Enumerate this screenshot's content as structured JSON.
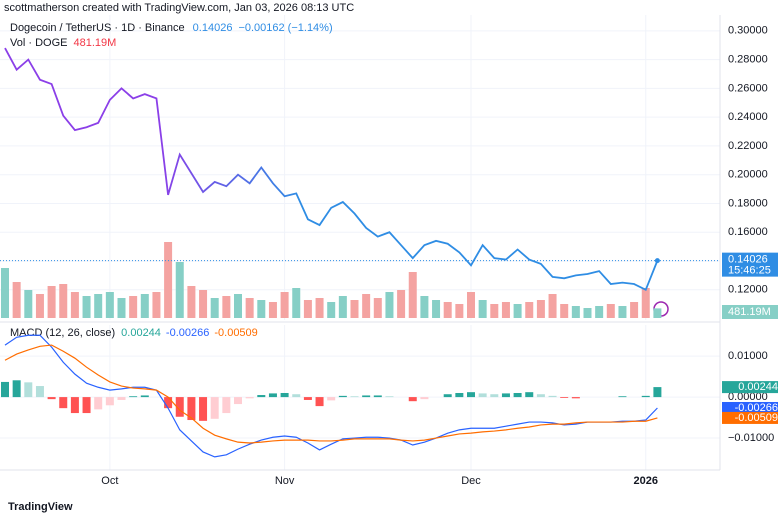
{
  "header": {
    "attribution": "scottmatherson created with TradingView.com, Jan 03, 2026 08:13 UTC"
  },
  "footer": {
    "logo": "TradingView"
  },
  "chart_data": [
    {
      "type": "line",
      "title": "Dogecoin / TetherUS · 1D · Binance",
      "change": "−0.00162 (−1.14%)",
      "countdown": "15:46:25",
      "series": [
        {
          "colors": [
            "#8b3fe8",
            "#2f8de4"
          ],
          "values": [
            0.288,
            0.273,
            0.28,
            0.266,
            0.263,
            0.241,
            0.231,
            0.233,
            0.236,
            0.252,
            0.26,
            0.253,
            0.256,
            0.253,
            0.186,
            0.214,
            0.201,
            0.188,
            0.195,
            0.192,
            0.2,
            0.194,
            0.205,
            0.194,
            0.185,
            0.187,
            0.169,
            0.165,
            0.177,
            0.181,
            0.173,
            0.163,
            0.157,
            0.16,
            0.151,
            0.142,
            0.151,
            0.154,
            0.152,
            0.146,
            0.137,
            0.151,
            0.142,
            0.141,
            0.148,
            0.141,
            0.138,
            0.129,
            0.128,
            0.13,
            0.131,
            0.133,
            0.124,
            0.125,
            0.124,
            0.12,
            0.14026
          ]
        }
      ],
      "ylim": [
        0.099,
        0.311
      ],
      "yticks": [
        {
          "value": 0.12,
          "label": "0.12000"
        },
        {
          "value": 0.14,
          "label": "0.14000"
        },
        {
          "value": 0.16,
          "label": "0.16000"
        },
        {
          "value": 0.18,
          "label": "0.18000"
        },
        {
          "value": 0.2,
          "label": "0.20000"
        },
        {
          "value": 0.22,
          "label": "0.22000"
        },
        {
          "value": 0.24,
          "label": "0.24000"
        },
        {
          "value": 0.26,
          "label": "0.26000"
        },
        {
          "value": 0.28,
          "label": "0.28000"
        },
        {
          "value": 0.3,
          "label": "0.30000"
        }
      ],
      "grid": true
    },
    {
      "type": "bar",
      "title": "Vol · DOGE",
      "up_color": "#86cfc6",
      "down_color": "#f4a3a1",
      "values": [
        2500,
        1800,
        1400,
        1200,
        1600,
        1700,
        1300,
        1100,
        1200,
        1300,
        1000,
        1100,
        1200,
        1300,
        3800,
        2800,
        1600,
        1400,
        1000,
        1100,
        1200,
        1000,
        900,
        800,
        1300,
        1500,
        900,
        1000,
        800,
        1100,
        900,
        1200,
        1000,
        1300,
        1400,
        2300,
        1100,
        900,
        800,
        700,
        1300,
        900,
        700,
        800,
        700,
        800,
        900,
        1200,
        700,
        600,
        500,
        600,
        700,
        600,
        800,
        1500,
        481.19
      ],
      "value_labels": [
        null,
        null,
        null,
        null,
        null,
        null,
        null,
        null,
        null,
        null,
        null,
        null,
        null,
        null,
        null,
        null,
        null,
        null,
        null,
        null,
        null,
        null,
        null,
        null,
        null,
        null,
        null,
        null,
        null,
        null,
        null,
        null,
        null,
        null,
        null,
        null,
        null,
        null,
        null,
        null,
        null,
        null,
        null,
        null,
        null,
        null,
        null,
        null,
        null,
        null,
        null,
        null,
        null,
        null,
        null,
        null,
        "481.19M"
      ]
    },
    {
      "type": "macd",
      "title": "MACD (12, 26, close)",
      "categories": [
        null,
        null,
        null,
        null,
        null,
        null,
        null,
        null,
        null,
        "Oct",
        null,
        null,
        null,
        null,
        null,
        null,
        null,
        null,
        null,
        null,
        null,
        null,
        null,
        null,
        "Nov",
        null,
        null,
        null,
        null,
        null,
        null,
        null,
        null,
        null,
        null,
        null,
        null,
        null,
        null,
        null,
        "Dec",
        null,
        null,
        null,
        null,
        null,
        null,
        null,
        null,
        null,
        null,
        null,
        null,
        null,
        null,
        "2026",
        null
      ],
      "series": [
        {
          "style": "histogram",
          "colors": [
            "#26a69a",
            "#b2dfdb",
            "#ff5252",
            "#ffcdd2"
          ],
          "values": [
            0.0037,
            0.0041,
            0.0036,
            0.0027,
            -0.0005,
            -0.0027,
            -0.0039,
            -0.0039,
            -0.003,
            -0.002,
            -0.0007,
            0.0002,
            0.0004,
            0.0,
            -0.0027,
            -0.0048,
            -0.0056,
            -0.0058,
            -0.0053,
            -0.0039,
            -0.0017,
            -0.0003,
            0.0005,
            0.0009,
            0.001,
            0.0007,
            -0.0007,
            -0.0022,
            -0.0008,
            0.0003,
            0.0002,
            0.0004,
            0.0004,
            0.0002,
            0.0,
            -0.001,
            -0.0005,
            0.0,
            0.0007,
            0.001,
            0.0012,
            0.0009,
            0.0007,
            0.0009,
            0.001,
            0.0012,
            0.0007,
            0.0003,
            -0.0002,
            -0.0003,
            0.0,
            0.0,
            0.0,
            0.0002,
            0.0,
            0.0003,
            0.00244
          ]
        },
        {
          "style": "line",
          "color": "#2962ff",
          "values": [
            0.0127,
            0.0146,
            0.0151,
            0.0151,
            0.0122,
            0.0085,
            0.0056,
            0.0034,
            0.0024,
            0.0017,
            0.002,
            0.0024,
            0.0024,
            0.0017,
            -0.0027,
            -0.008,
            -0.0107,
            -0.0134,
            -0.0146,
            -0.0141,
            -0.0127,
            -0.0115,
            -0.0105,
            -0.0098,
            -0.0095,
            -0.0098,
            -0.0112,
            -0.0129,
            -0.0115,
            -0.0102,
            -0.01,
            -0.0098,
            -0.0098,
            -0.01,
            -0.0105,
            -0.0117,
            -0.011,
            -0.01,
            -0.0088,
            -0.008,
            -0.0076,
            -0.0076,
            -0.0076,
            -0.0071,
            -0.0066,
            -0.0061,
            -0.0061,
            -0.0063,
            -0.0068,
            -0.0066,
            -0.0061,
            -0.0061,
            -0.0061,
            -0.0059,
            -0.0059,
            -0.0056,
            -0.00266
          ]
        },
        {
          "style": "line",
          "color": "#ff6d00",
          "values": [
            0.009,
            0.0105,
            0.0115,
            0.0124,
            0.0127,
            0.0112,
            0.0095,
            0.0073,
            0.0054,
            0.0037,
            0.0027,
            0.0022,
            0.002,
            0.0017,
            0.0,
            -0.0032,
            -0.0051,
            -0.0076,
            -0.0093,
            -0.0102,
            -0.011,
            -0.0112,
            -0.011,
            -0.0107,
            -0.0105,
            -0.0105,
            -0.0105,
            -0.0107,
            -0.0107,
            -0.0105,
            -0.0102,
            -0.0102,
            -0.0102,
            -0.0102,
            -0.0105,
            -0.0107,
            -0.0105,
            -0.01,
            -0.0095,
            -0.009,
            -0.0088,
            -0.0085,
            -0.0083,
            -0.008,
            -0.0076,
            -0.0073,
            -0.0068,
            -0.0066,
            -0.0066,
            -0.0063,
            -0.0061,
            -0.0061,
            -0.0061,
            -0.0061,
            -0.0059,
            -0.0059,
            -0.00509
          ]
        }
      ],
      "ylim": [
        -0.0178,
        0.0176
      ],
      "yticks": [
        {
          "value": -0.01,
          "label": "−0.01000"
        },
        {
          "value": 0,
          "label": "0.00000"
        },
        {
          "value": 0.01,
          "label": "0.01000"
        }
      ],
      "grid": true
    }
  ]
}
